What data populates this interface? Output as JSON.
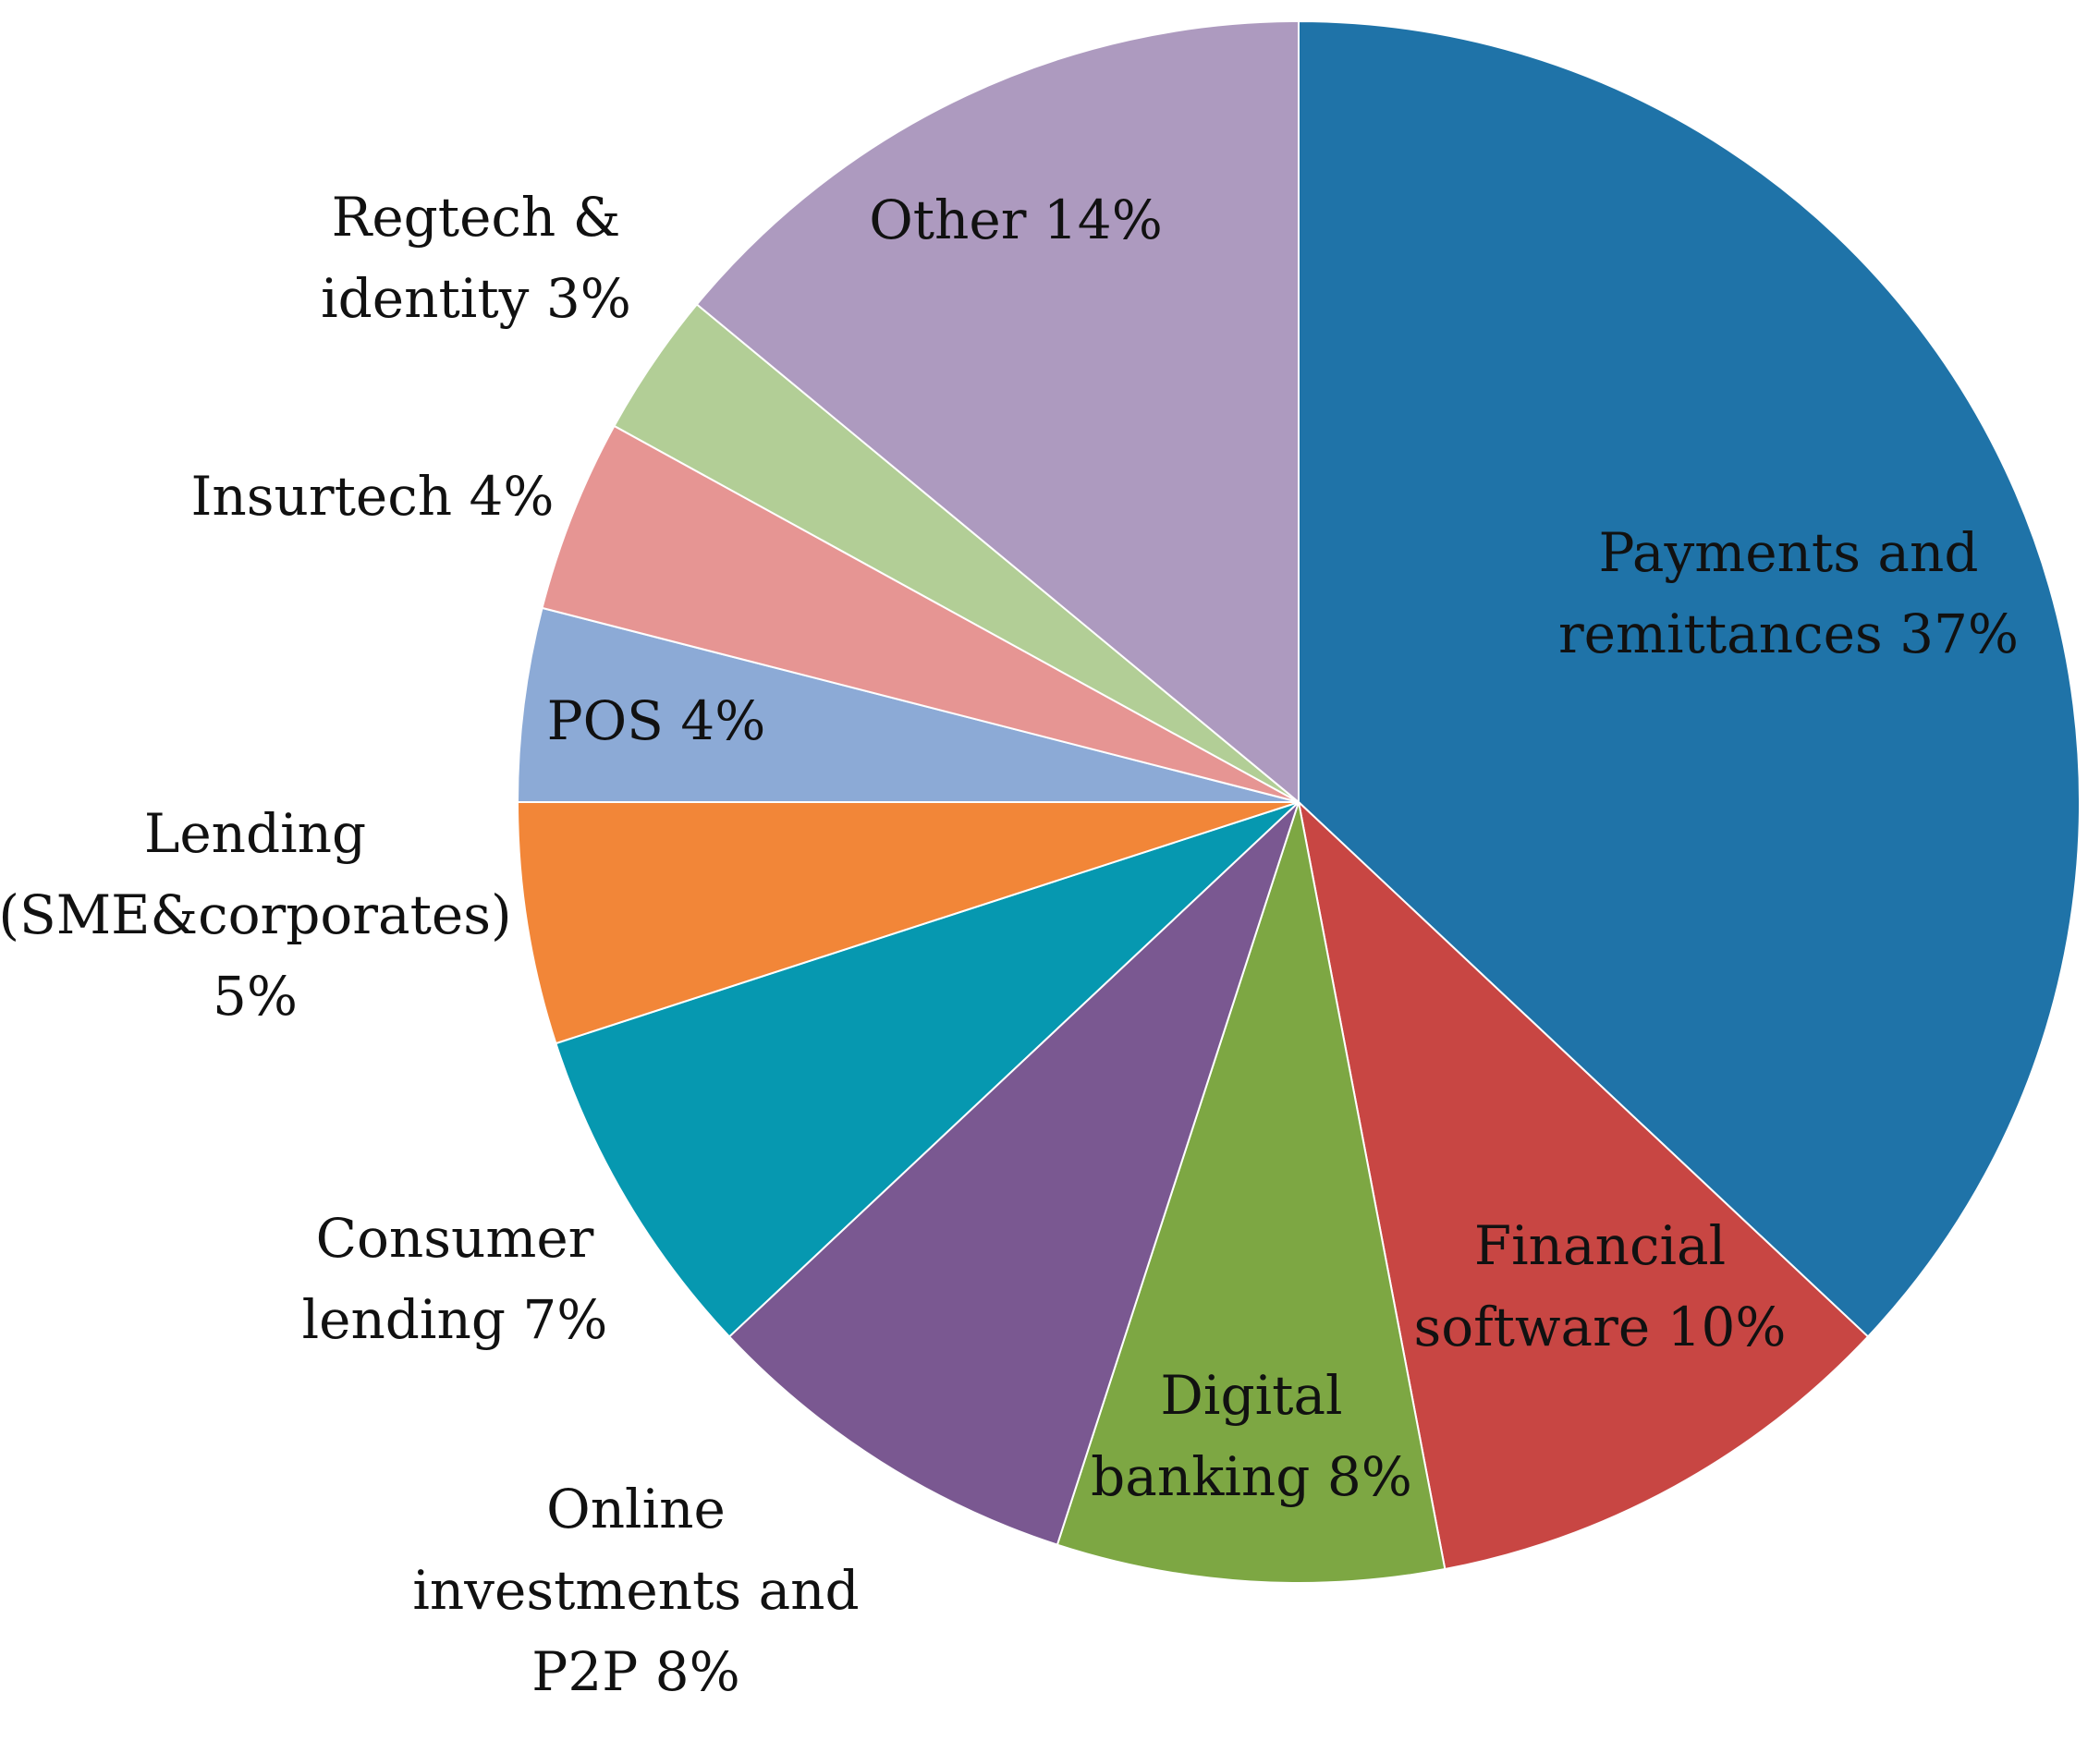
{
  "chart_data": {
    "type": "pie",
    "start": "12 o'clock",
    "direction": "clockwise",
    "slices": [
      {
        "label": [
          "Payments and",
          "remittances 37%"
        ],
        "value": 37,
        "color": "#1F73A8"
      },
      {
        "label": [
          "Financial",
          "software 10%"
        ],
        "value": 10,
        "color": "#C84643"
      },
      {
        "label": [
          "Digital",
          "banking 8%"
        ],
        "value": 8,
        "color": "#7DA743"
      },
      {
        "label": [
          "Online",
          "investments and",
          "P2P 8%"
        ],
        "value": 8,
        "color": "#7A5891"
      },
      {
        "label": [
          "Consumer",
          "lending 7%"
        ],
        "value": 7,
        "color": "#0698B0"
      },
      {
        "label": [
          "Lending",
          "(SME&corporates)",
          "5%"
        ],
        "value": 5,
        "color": "#F28638"
      },
      {
        "label": [
          "POS 4%"
        ],
        "value": 4,
        "color": "#8CAAD6"
      },
      {
        "label": [
          "Insurtech 4%"
        ],
        "value": 4,
        "color": "#E69593"
      },
      {
        "label": [
          "Regtech &",
          "identity 3%"
        ],
        "value": 3,
        "color": "#B2CE96"
      },
      {
        "label": [
          "Other 14%"
        ],
        "value": 14,
        "color": "#AD9ABF"
      }
    ]
  }
}
